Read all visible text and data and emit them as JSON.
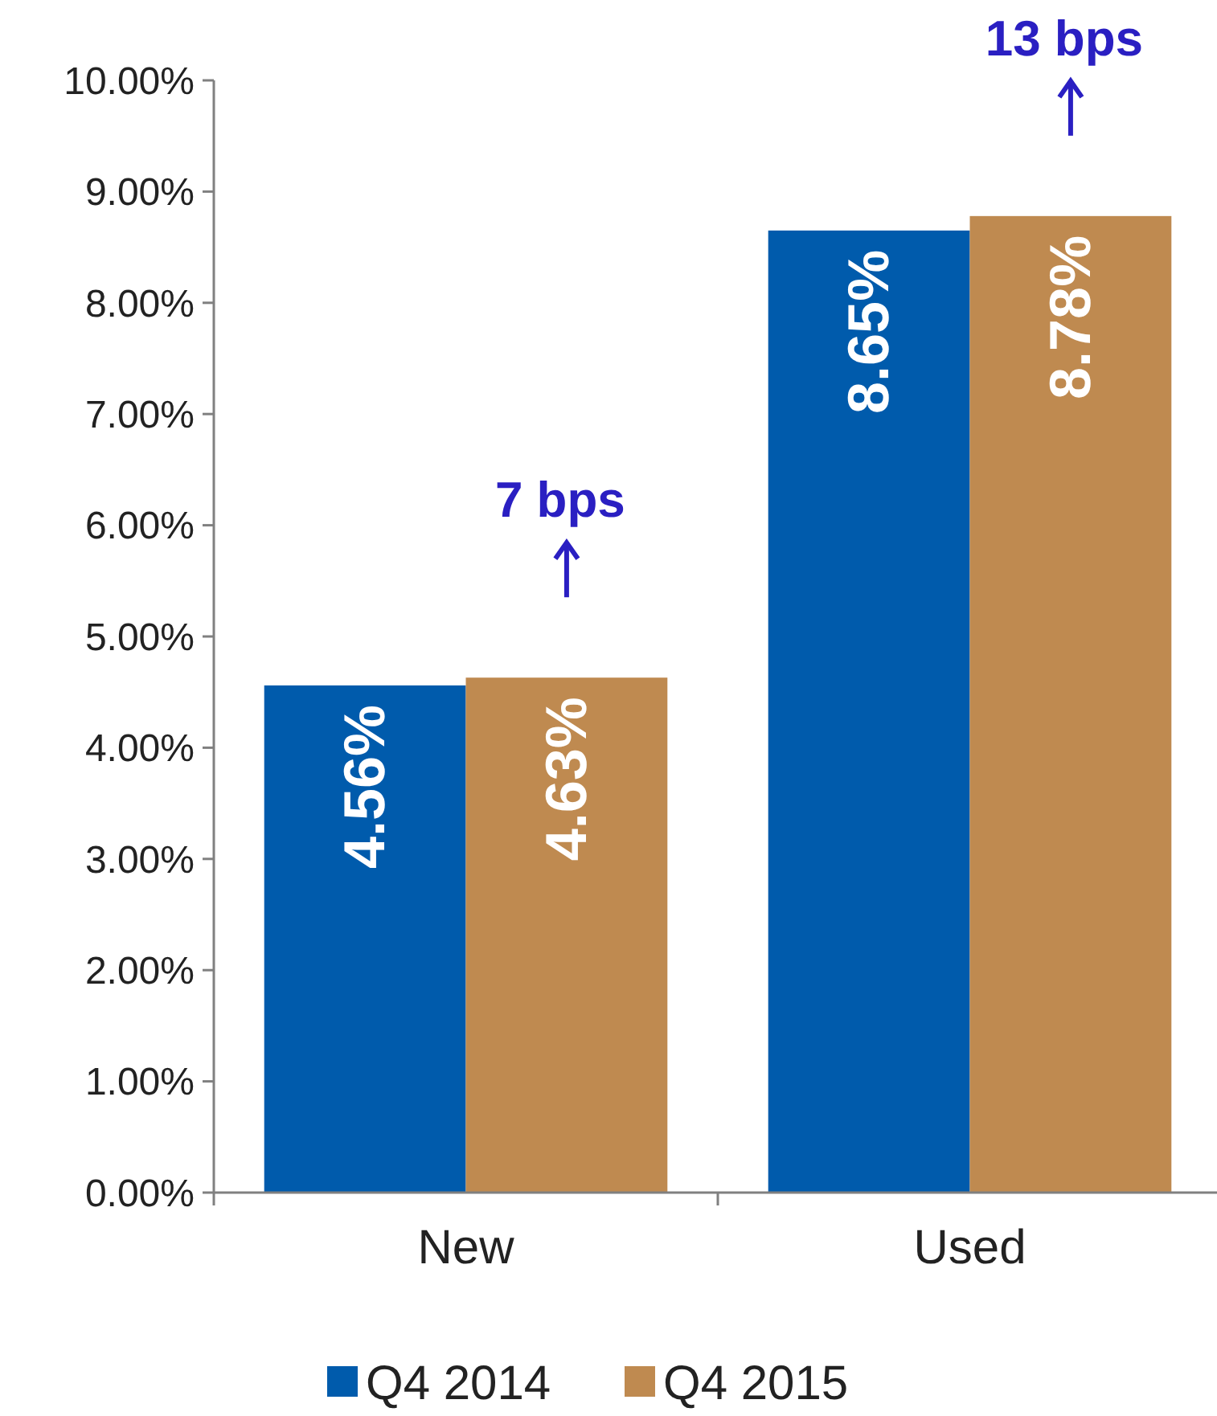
{
  "chart_data": {
    "type": "bar",
    "categories": [
      "New",
      "Used"
    ],
    "series": [
      {
        "name": "Q4 2014",
        "color": "#005bac",
        "values": [
          4.56,
          8.65
        ],
        "value_labels": [
          "4.56%",
          "8.65%"
        ]
      },
      {
        "name": "Q4 2015",
        "color": "#bf8a50",
        "values": [
          4.63,
          8.78
        ],
        "value_labels": [
          "4.63%",
          "8.78%"
        ]
      }
    ],
    "ylim": [
      0,
      10
    ],
    "yticks": [
      {
        "value": 0,
        "label": "0.00%"
      },
      {
        "value": 1,
        "label": "1.00%"
      },
      {
        "value": 2,
        "label": "2.00%"
      },
      {
        "value": 3,
        "label": "3.00%"
      },
      {
        "value": 4,
        "label": "4.00%"
      },
      {
        "value": 5,
        "label": "5.00%"
      },
      {
        "value": 6,
        "label": "6.00%"
      },
      {
        "value": 7,
        "label": "7.00%"
      },
      {
        "value": 8,
        "label": "8.00%"
      },
      {
        "value": 9,
        "label": "9.00%"
      },
      {
        "value": 10,
        "label": "10.00%"
      }
    ],
    "annotations": [
      "7 bps",
      "13 bps"
    ],
    "legend": "bottom",
    "grid": false
  }
}
